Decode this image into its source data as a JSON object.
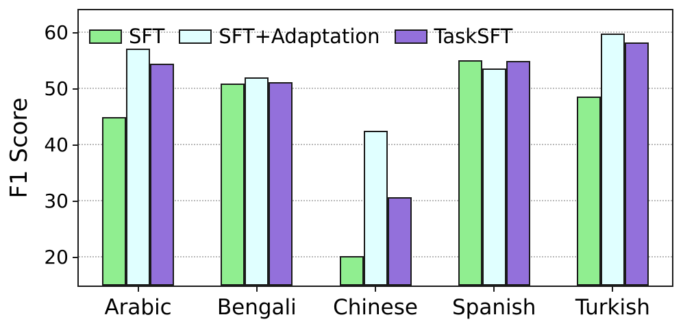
{
  "chart_data": {
    "type": "bar",
    "title": "",
    "xlabel": "",
    "ylabel": "F1 Score",
    "categories": [
      "Arabic",
      "Bengali",
      "Chinese",
      "Spanish",
      "Turkish"
    ],
    "series": [
      {
        "name": "SFT",
        "color": "#90EE90",
        "values": [
          45.0,
          51.0,
          20.2,
          55.1,
          48.7
        ]
      },
      {
        "name": "SFT+Adaptation",
        "color": "#E0FFFF",
        "values": [
          57.2,
          52.0,
          42.6,
          53.7,
          59.8
        ]
      },
      {
        "name": "TaskSFT",
        "color": "#9370DB",
        "values": [
          54.5,
          51.2,
          30.7,
          55.0,
          58.3
        ]
      }
    ],
    "ylim": [
      15,
      64
    ],
    "yticks": [
      20,
      30,
      40,
      50,
      60
    ],
    "grid": true,
    "grid_style": "dotted",
    "legend_position": "upper-left-inside",
    "bar_edge_color": "#1a1a1a"
  },
  "colors": {
    "background": "#ffffff",
    "axis": "#1a1a1a",
    "grid": "#b9b9b9",
    "text": "#000000"
  }
}
